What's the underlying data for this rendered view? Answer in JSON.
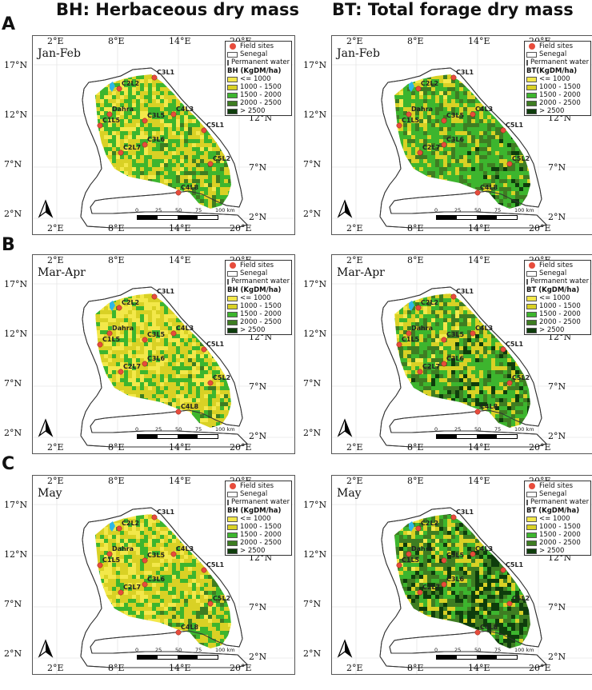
{
  "titles": {
    "left": "BH: Herbaceous dry mass",
    "right": "BT: Total forage dry mass"
  },
  "rows": [
    {
      "letter": "A",
      "period": "Jan-Feb"
    },
    {
      "letter": "B",
      "period": "Mar-Apr"
    },
    {
      "letter": "C",
      "period": "May"
    }
  ],
  "axes": {
    "lon_ticks": [
      "2°E",
      "8°E",
      "14°E",
      "20°E"
    ],
    "lat_ticks": [
      "17°N",
      "12°N",
      "7°N",
      "2°N"
    ]
  },
  "legend": {
    "field_sites": "Field sites",
    "senegal": "Senegal",
    "water": "Permanent water",
    "bh_title": "BH (KgDM/ha)",
    "bt_title": "BT (KgDM/ha)",
    "bt_title_a": "BT(KgDM/ha)",
    "classes": [
      "<= 1000",
      "1000 - 1500",
      "1500 - 2000",
      "2000 - 2500",
      "> 2500"
    ],
    "class_colors": [
      "#f3e84a",
      "#d9d125",
      "#3db52e",
      "#3e7d22",
      "#0e3d0c"
    ],
    "water_color": "#2fb7e6"
  },
  "scale": {
    "labels": [
      "0",
      "25",
      "50",
      "75",
      "100 km"
    ]
  },
  "sites": [
    "C3L1",
    "C2L2",
    "Dahra",
    "C4L3",
    "C3L5",
    "C1L5",
    "C5L1",
    "C3L6",
    "C2L7",
    "C5L2",
    "C4L8"
  ]
}
